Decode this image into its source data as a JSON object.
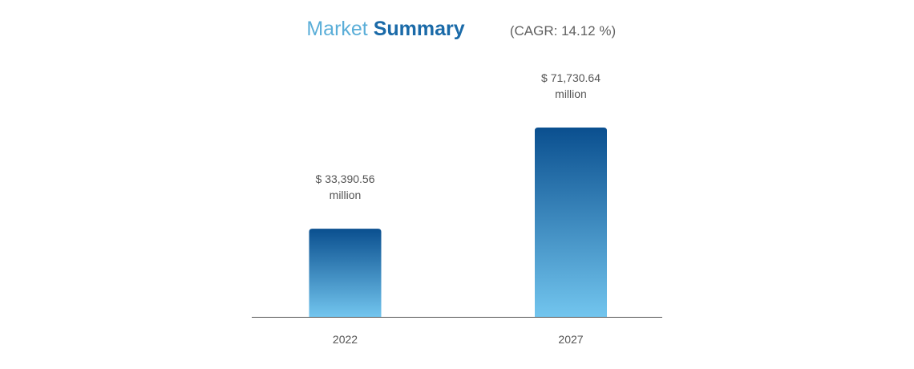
{
  "header": {
    "title_part1": "Market",
    "title_part2": "Summary",
    "cagr": "(CAGR: 14.12 %)"
  },
  "colors": {
    "title_light": "#5aaed8",
    "title_dark": "#1a6aa8",
    "bar_top": "#0a4f8f",
    "bar_bottom": "#72c5ee",
    "axis": "#555555"
  },
  "chart_data": {
    "type": "bar",
    "title": "Market Summary",
    "subtitle": "(CAGR: 14.12 %)",
    "categories": [
      "2022",
      "2027"
    ],
    "values": [
      33390.56,
      71730.64
    ],
    "value_labels": [
      {
        "line1": "$ 33,390.56",
        "line2": "million"
      },
      {
        "line1": "$ 71,730.64",
        "line2": "million"
      }
    ],
    "grid": false,
    "legend": "none"
  }
}
